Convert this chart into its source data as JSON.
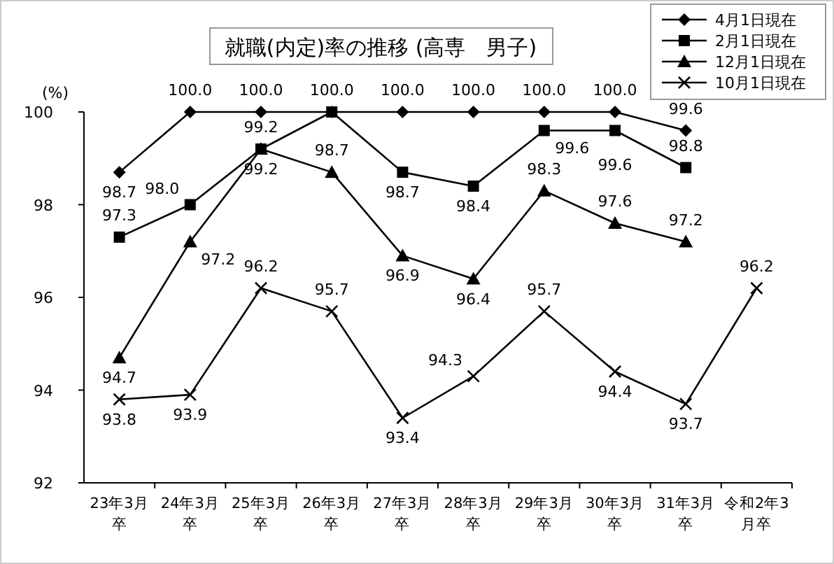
{
  "chart_data": {
    "type": "line",
    "title": "就職(内定)率の推移 (高専　男子)",
    "ylabel": "(%)",
    "categories": [
      "23年3月卒",
      "24年3月卒",
      "25年3月卒",
      "26年3月卒",
      "27年3月卒",
      "28年3月卒",
      "29年3月卒",
      "30年3月卒",
      "31年3月卒",
      "令和2年3月卒"
    ],
    "ylim": [
      92,
      100
    ],
    "yticks": [
      92,
      94,
      96,
      98,
      100
    ],
    "grid": false,
    "legend": "top right",
    "series": [
      {
        "name": "4月1日現在",
        "color": "#000000",
        "marker": "diamond",
        "values": [
          98.7,
          100.0,
          100.0,
          100.0,
          100.0,
          100.0,
          100.0,
          100.0,
          99.6,
          null
        ],
        "value_labels": [
          "98.7",
          "100.0",
          "100.0",
          "100.0",
          "100.0",
          "100.0",
          "100.0",
          "100.0",
          "99.6",
          null
        ]
      },
      {
        "name": "2月1日現在",
        "color": "#000000",
        "marker": "square",
        "values": [
          97.3,
          98.0,
          99.2,
          100.0,
          98.7,
          98.4,
          99.6,
          99.6,
          98.8,
          null
        ],
        "value_labels": [
          "97.3",
          "98.0",
          "99.2",
          null,
          "98.7",
          "98.4",
          "99.6",
          "99.6",
          "98.8",
          null
        ]
      },
      {
        "name": "12月1日現在",
        "color": "#000000",
        "marker": "triangle",
        "values": [
          94.7,
          97.2,
          99.2,
          98.7,
          96.9,
          96.4,
          98.3,
          97.6,
          97.2,
          null
        ],
        "value_labels": [
          "94.7",
          "97.2",
          "99.2",
          "98.7",
          "96.9",
          "96.4",
          "98.3",
          "97.6",
          "97.2",
          null
        ]
      },
      {
        "name": "10月1日現在",
        "color": "#000000",
        "marker": "cross",
        "values": [
          93.8,
          93.9,
          96.2,
          95.7,
          93.4,
          94.3,
          95.7,
          94.4,
          93.7,
          96.2
        ],
        "value_labels": [
          "93.8",
          "93.9",
          "96.2",
          "95.7",
          "93.4",
          "94.3",
          "95.7",
          "94.4",
          "93.7",
          "96.2"
        ]
      }
    ]
  }
}
